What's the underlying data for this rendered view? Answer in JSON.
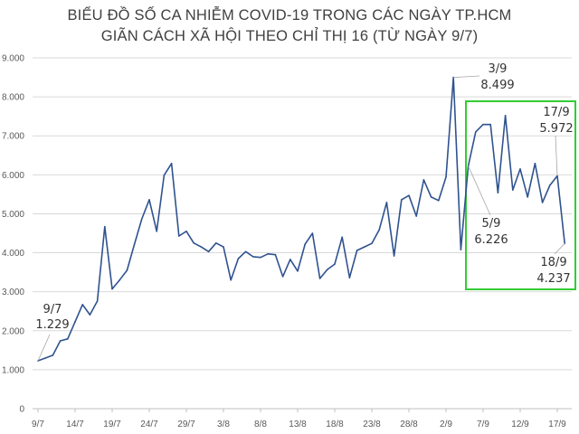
{
  "chart_data": {
    "type": "line",
    "title": "BIỂU ĐỒ SỐ CA NHIỄM COVID-19 TRONG CÁC NGÀY TP.HCM",
    "subtitle": "GIÃN CÁCH XÃ HỘI THEO CHỈ THỊ 16 (TỪ NGÀY 9/7)",
    "xlabel": "",
    "ylabel": "",
    "ylim": [
      0,
      9000
    ],
    "y_ticks": [
      "0",
      "1.000",
      "2.000",
      "3.000",
      "4.000",
      "5.000",
      "6.000",
      "7.000",
      "8.000",
      "9.000"
    ],
    "x_ticks": [
      "9/7",
      "14/7",
      "19/7",
      "24/7",
      "29/7",
      "3/8",
      "8/8",
      "13/8",
      "18/8",
      "23/8",
      "28/8",
      "2/9",
      "7/9",
      "12/9",
      "17/9"
    ],
    "grid": "horizontal",
    "line_color": "#2f528f",
    "highlight_box_color": "#33cc33",
    "x": [
      "9/7",
      "10/7",
      "11/7",
      "12/7",
      "13/7",
      "14/7",
      "15/7",
      "16/7",
      "17/7",
      "18/7",
      "19/7",
      "20/7",
      "21/7",
      "22/7",
      "23/7",
      "24/7",
      "25/7",
      "26/7",
      "27/7",
      "28/7",
      "29/7",
      "30/7",
      "31/7",
      "1/8",
      "2/8",
      "3/8",
      "4/8",
      "5/8",
      "6/8",
      "7/8",
      "8/8",
      "9/8",
      "10/8",
      "11/8",
      "12/8",
      "13/8",
      "14/8",
      "15/8",
      "16/8",
      "17/8",
      "18/8",
      "19/8",
      "20/8",
      "21/8",
      "22/8",
      "23/8",
      "24/8",
      "25/8",
      "26/8",
      "27/8",
      "28/8",
      "29/8",
      "30/8",
      "31/8",
      "1/9",
      "2/9",
      "3/9",
      "4/9",
      "5/9",
      "6/9",
      "7/9",
      "8/9",
      "9/9",
      "10/9",
      "11/9",
      "12/9",
      "13/9",
      "14/9",
      "15/9",
      "16/9",
      "17/9",
      "18/9"
    ],
    "values": [
      1229,
      1300,
      1370,
      1740,
      1790,
      2230,
      2670,
      2410,
      2760,
      4670,
      3070,
      3300,
      3550,
      4220,
      4870,
      5360,
      4550,
      5990,
      6290,
      4430,
      4550,
      4250,
      4150,
      4030,
      4250,
      4150,
      3300,
      3850,
      4030,
      3900,
      3880,
      3970,
      3950,
      3390,
      3830,
      3530,
      4220,
      4500,
      3340,
      3570,
      3710,
      4400,
      3360,
      4060,
      4150,
      4240,
      4590,
      5290,
      3920,
      5360,
      5470,
      4940,
      5870,
      5430,
      5340,
      5940,
      8499,
      4080,
      6226,
      7100,
      7290,
      7290,
      5540,
      7520,
      5610,
      6150,
      5430,
      6290,
      5290,
      5730,
      5972,
      4237
    ],
    "annotations": [
      {
        "date": "9/7",
        "value": "1.229"
      },
      {
        "date": "3/9",
        "value": "8.499"
      },
      {
        "date": "5/9",
        "value": "6.226"
      },
      {
        "date": "17/9",
        "value": "5.972"
      },
      {
        "date": "18/9",
        "value": "4.237"
      }
    ]
  }
}
